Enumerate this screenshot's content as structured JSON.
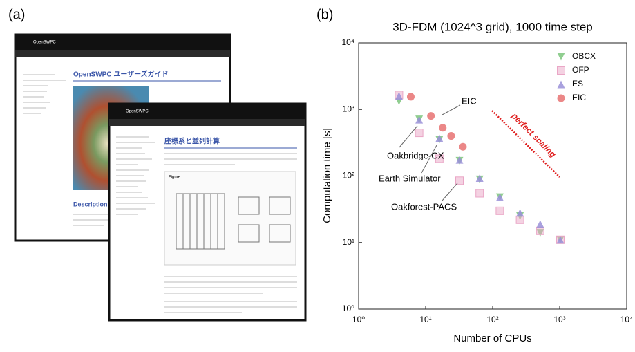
{
  "panel_a": {
    "label": "(a)",
    "window1": {
      "brand": "OpenSWPC",
      "heading": "OpenSWPC ユーザーズガイド",
      "section": "Description"
    },
    "window2": {
      "brand": "OpenSWPC",
      "heading": "座標系と並列計算",
      "figure": "Figure"
    }
  },
  "chart_data": {
    "type": "scatter",
    "panel_label": "(b)",
    "title": "3D-FDM (1024^3 grid), 1000 time step",
    "x_label": "Number of CPUs",
    "y_label": "Computation time [s]",
    "log_x": true,
    "log_y": true,
    "xlim": [
      1,
      10000
    ],
    "ylim": [
      1,
      10000
    ],
    "xticks": [
      {
        "value": 1,
        "label": "10⁰"
      },
      {
        "value": 10,
        "label": "10¹"
      },
      {
        "value": 100,
        "label": "10²"
      },
      {
        "value": 1000,
        "label": "10³"
      },
      {
        "value": 10000,
        "label": "10⁴"
      }
    ],
    "yticks": [
      {
        "value": 1,
        "label": "10⁰"
      },
      {
        "value": 10,
        "label": "10¹"
      },
      {
        "value": 100,
        "label": "10²"
      },
      {
        "value": 1000,
        "label": "10³"
      },
      {
        "value": 10000,
        "label": "10⁴"
      }
    ],
    "legend": "upper right",
    "series": [
      {
        "name": "OBCX",
        "color": "#7cc67c",
        "marker": "triangle-down",
        "x": [
          4,
          8,
          16,
          32,
          64,
          128,
          256,
          512,
          1024
        ],
        "values": [
          1330,
          710,
          350,
          170,
          89,
          48,
          25,
          14,
          11
        ]
      },
      {
        "name": "OFP",
        "color": "#eaa6c6",
        "marker": "square",
        "x": [
          4,
          8,
          16,
          32,
          64,
          128,
          256,
          512,
          1024
        ],
        "values": [
          1650,
          445,
          182,
          85,
          55,
          30,
          22,
          15,
          11
        ]
      },
      {
        "name": "ES",
        "color": "#9a90d8",
        "marker": "triangle-up",
        "x": [
          4,
          8,
          16,
          32,
          64,
          128,
          256,
          512,
          1024
        ],
        "values": [
          1600,
          700,
          370,
          175,
          93,
          48,
          28,
          19,
          11
        ]
      },
      {
        "name": "EIC",
        "color": "#e87272",
        "marker": "circle",
        "x": [
          6,
          12,
          18,
          24,
          36
        ],
        "values": [
          1550,
          800,
          530,
          400,
          275
        ]
      }
    ],
    "annotations": [
      "EIC",
      "Oakbridge-CX",
      "Earth Simulator",
      "Oakforest-PACS",
      "perfect scaling"
    ]
  }
}
